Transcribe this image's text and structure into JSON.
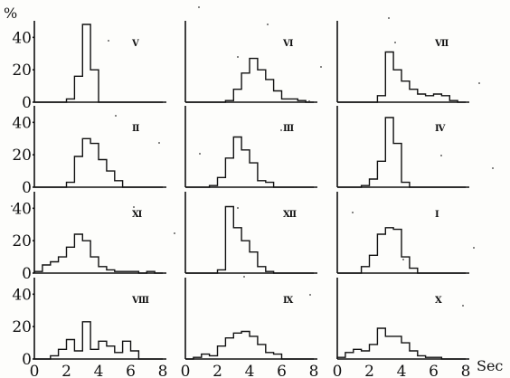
{
  "chart_data": {
    "type": "bar",
    "layout": "4x3 grid of histograms",
    "y_unit": "%",
    "x_unit": "Sec",
    "xlim": [
      0,
      8
    ],
    "ylim": [
      0,
      48
    ],
    "y_ticks": [
      0,
      20,
      40
    ],
    "x_ticks": [
      0,
      2,
      4,
      6,
      8
    ],
    "bin_width": 0.5,
    "bin_start": 0,
    "panels": [
      {
        "label": "Ⅴ",
        "values": [
          0,
          0,
          0,
          0,
          2,
          16,
          48,
          20,
          0,
          0,
          0,
          0,
          0,
          0,
          0,
          0
        ]
      },
      {
        "label": "Ⅵ",
        "values": [
          0,
          0,
          0,
          0,
          0,
          1,
          8,
          18,
          27,
          20,
          14,
          7,
          2,
          2,
          1,
          0
        ]
      },
      {
        "label": "Ⅶ",
        "values": [
          0,
          0,
          0,
          0,
          0,
          4,
          31,
          20,
          13,
          8,
          5,
          4,
          5,
          4,
          1,
          0
        ]
      },
      {
        "label": "Ⅱ",
        "values": [
          0,
          0,
          0,
          0,
          3,
          19,
          30,
          27,
          17,
          10,
          4,
          0,
          0,
          0,
          0,
          0
        ]
      },
      {
        "label": "Ⅲ",
        "values": [
          0,
          0,
          0,
          1,
          6,
          18,
          31,
          23,
          15,
          4,
          3,
          0,
          0,
          0,
          0,
          0
        ]
      },
      {
        "label": "Ⅳ",
        "values": [
          0,
          0,
          0,
          1,
          5,
          16,
          43,
          27,
          3,
          0,
          0,
          0,
          0,
          0,
          0,
          0
        ]
      },
      {
        "label": "Ⅺ",
        "values": [
          1,
          5,
          7,
          10,
          16,
          24,
          20,
          10,
          4,
          2,
          1,
          1,
          1,
          0,
          1,
          0
        ]
      },
      {
        "label": "Ⅻ",
        "values": [
          0,
          0,
          0,
          0,
          2,
          41,
          28,
          20,
          13,
          4,
          1,
          0,
          0,
          0,
          0,
          0
        ]
      },
      {
        "label": "Ⅰ",
        "values": [
          0,
          0,
          0,
          4,
          11,
          24,
          28,
          27,
          10,
          3,
          0,
          0,
          0,
          0,
          0,
          0
        ]
      },
      {
        "label": "Ⅷ",
        "values": [
          0,
          0,
          2,
          6,
          12,
          5,
          23,
          6,
          11,
          8,
          4,
          11,
          5,
          0,
          0,
          0
        ]
      },
      {
        "label": "Ⅸ",
        "values": [
          0,
          1,
          3,
          2,
          8,
          13,
          16,
          17,
          14,
          9,
          4,
          3,
          0,
          0,
          0,
          0
        ]
      },
      {
        "label": "Ⅹ",
        "values": [
          1,
          4,
          6,
          5,
          9,
          19,
          14,
          14,
          10,
          5,
          2,
          1,
          1,
          0,
          0,
          0
        ]
      }
    ]
  }
}
